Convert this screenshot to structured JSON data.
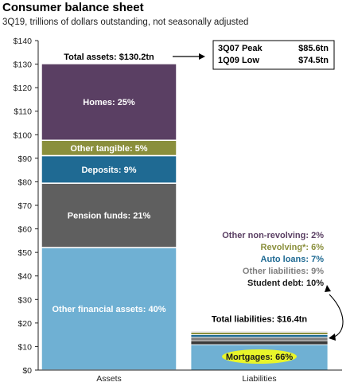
{
  "chart_data": {
    "type": "bar",
    "stacked": true,
    "title": "Consumer balance sheet",
    "subtitle": "3Q19, trillions of dollars outstanding, not seasonally adjusted",
    "y_ticks": [
      "$0",
      "$10",
      "$20",
      "$30",
      "$40",
      "$50",
      "$60",
      "$70",
      "$80",
      "$90",
      "$100",
      "$110",
      "$120",
      "$130",
      "$140"
    ],
    "ylim": [
      0,
      140
    ],
    "grid": false,
    "categories": [
      "Assets",
      "Liabilities"
    ],
    "assets": {
      "total": 130.2,
      "total_label": "Total assets: $130.2tn",
      "segments": [
        {
          "name": "Other financial assets",
          "pct": 40,
          "label": "Other financial assets: 40%",
          "color": "#6fb0d3"
        },
        {
          "name": "Pension funds",
          "pct": 21,
          "label": "Pension funds: 21%",
          "color": "#5f5f5f"
        },
        {
          "name": "Deposits",
          "pct": 9,
          "label": "Deposits: 9%",
          "color": "#1f6a93"
        },
        {
          "name": "Other tangible",
          "pct": 5,
          "label": "Other tangible: 5%",
          "color": "#8a8f3c"
        },
        {
          "name": "Homes",
          "pct": 25,
          "label": "Homes: 25%",
          "color": "#5a3f63"
        }
      ]
    },
    "liabilities": {
      "total": 16.4,
      "total_label": "Total liabilities: $16.4tn",
      "segments": [
        {
          "name": "Mortgages",
          "pct": 66,
          "label": "Mortgages: 66%",
          "color": "#6fb0d3",
          "highlight": "#e8f52a"
        },
        {
          "name": "Student debt",
          "pct": 10,
          "label": "Student debt: 10%",
          "color": "#3a3a3a"
        },
        {
          "name": "Other liabilities",
          "pct": 9,
          "label": "Other liabilities: 9%",
          "color": "#7f7f7f"
        },
        {
          "name": "Auto loans",
          "pct": 7,
          "label": "Auto loans: 7%",
          "color": "#1f6a93"
        },
        {
          "name": "Revolving*",
          "pct": 6,
          "label": "Revolving*: 6%",
          "color": "#8a8f3c"
        },
        {
          "name": "Other non-revolving",
          "pct": 2,
          "label": "Other non-revolving: 2%",
          "color": "#5a3f63"
        }
      ]
    },
    "peak_box": [
      {
        "label": "3Q07 Peak",
        "value": "$85.6tn"
      },
      {
        "label": "1Q09 Low",
        "value": "$74.5tn"
      }
    ]
  }
}
